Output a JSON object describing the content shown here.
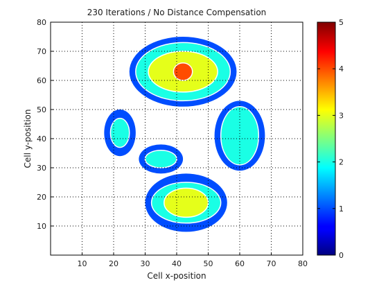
{
  "chart_data": {
    "type": "heatmap",
    "title": "230 Iterations / No Distance Compensation",
    "xlabel": "Cell x-position",
    "ylabel": "Cell y-position",
    "xlim": [
      0,
      80
    ],
    "ylim": [
      0,
      80
    ],
    "x_ticks": [
      10,
      20,
      30,
      40,
      50,
      60,
      70,
      80
    ],
    "y_ticks": [
      10,
      20,
      30,
      40,
      50,
      60,
      70,
      80
    ],
    "grid": true,
    "colorbar": {
      "range": [
        0,
        5
      ],
      "ticks": [
        0,
        1,
        2,
        3,
        4,
        5
      ],
      "colormap": "jet"
    },
    "regions": [
      {
        "cx": 42,
        "cy": 63,
        "layers": [
          {
            "value": 1,
            "rx": 17,
            "ry": 12
          },
          {
            "value": 2,
            "rx": 15,
            "ry": 10
          },
          {
            "value": 3,
            "rx": 11,
            "ry": 7
          },
          {
            "value": 4,
            "rx": 3,
            "ry": 3
          }
        ]
      },
      {
        "cx": 60,
        "cy": 41,
        "layers": [
          {
            "value": 1,
            "rx": 8,
            "ry": 12
          },
          {
            "value": 2,
            "rx": 6,
            "ry": 10
          }
        ]
      },
      {
        "cx": 22,
        "cy": 42,
        "layers": [
          {
            "value": 1,
            "rx": 5,
            "ry": 8
          },
          {
            "value": 2,
            "rx": 3,
            "ry": 5
          }
        ]
      },
      {
        "cx": 35,
        "cy": 33,
        "layers": [
          {
            "value": 1,
            "rx": 7,
            "ry": 5
          },
          {
            "value": 2,
            "rx": 5,
            "ry": 3
          }
        ]
      },
      {
        "cx": 43,
        "cy": 18,
        "layers": [
          {
            "value": 1,
            "rx": 13,
            "ry": 10
          },
          {
            "value": 2,
            "rx": 11,
            "ry": 7
          },
          {
            "value": 3,
            "rx": 7,
            "ry": 5
          }
        ]
      }
    ]
  }
}
